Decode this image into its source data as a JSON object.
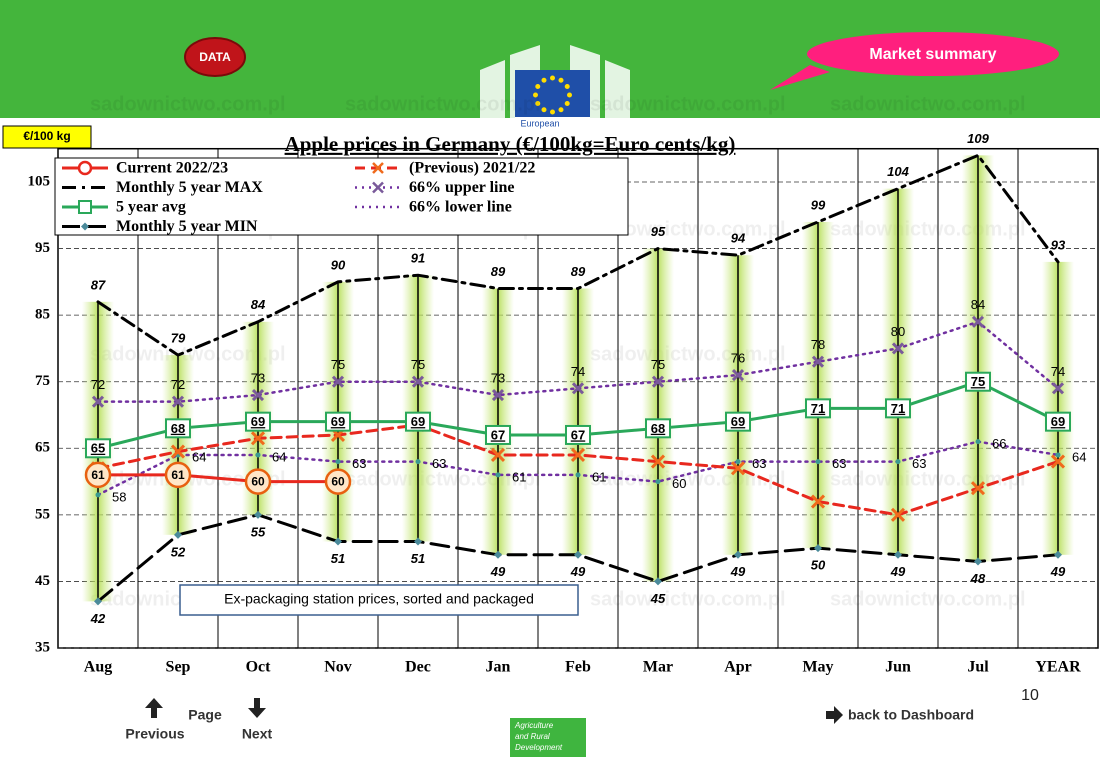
{
  "header": {
    "data_button": "DATA",
    "market_summary": "Market summary",
    "logo_text": "European"
  },
  "watermark": "sadownictwo.com.pl",
  "chart_data": {
    "type": "line",
    "title": "Apple prices in Germany (€/100kg=Euro cents/kg)",
    "y_label": "€/100 kg",
    "annotation": "Ex-packaging station prices, sorted and packaged",
    "categories": [
      "Aug",
      "Sep",
      "Oct",
      "Nov",
      "Dec",
      "Jan",
      "Feb",
      "Mar",
      "Apr",
      "May",
      "Jun",
      "Jul",
      "YEAR"
    ],
    "series": [
      {
        "name": "Current 2022/23",
        "color": "#e8281e",
        "values": [
          61,
          61,
          60,
          60,
          null,
          null,
          null,
          null,
          null,
          null,
          null,
          null,
          null
        ]
      },
      {
        "name": "(Previous) 2021/22",
        "color": "#e8281e",
        "values": [
          62,
          64.5,
          66.5,
          67,
          68.5,
          64,
          64,
          63,
          62,
          57,
          55,
          59,
          63
        ]
      },
      {
        "name": "Monthly 5 year MAX",
        "color": "#000000",
        "values": [
          87,
          79,
          84,
          90,
          91,
          89,
          89,
          95,
          94,
          99,
          104,
          109,
          93
        ]
      },
      {
        "name": "66% upper line",
        "color": "#7030a0",
        "values": [
          72,
          72,
          73,
          75,
          75,
          73,
          74,
          75,
          76,
          78,
          80,
          84,
          74
        ]
      },
      {
        "name": "5 year avg",
        "color": "#2aa85a",
        "values": [
          65,
          68,
          69,
          69,
          69,
          67,
          67,
          68,
          69,
          71,
          71,
          75,
          69
        ]
      },
      {
        "name": "66% lower line",
        "color": "#7030a0",
        "values": [
          58,
          64,
          64,
          63,
          63,
          61,
          61,
          60,
          63,
          63,
          63,
          66,
          64
        ]
      },
      {
        "name": "Monthly 5 year MIN",
        "color": "#000000",
        "values": [
          42,
          52,
          55,
          51,
          51,
          49,
          49,
          45,
          49,
          50,
          49,
          48,
          49
        ]
      }
    ],
    "ylim": [
      35,
      110
    ],
    "yticks": [
      35,
      45,
      55,
      65,
      75,
      85,
      95,
      105
    ],
    "grid": true
  },
  "footer": {
    "page": "Page",
    "previous": "Previous",
    "next": "Next",
    "dashboard": "back to Dashboard",
    "page_number": 10,
    "dg_line1": "Agriculture",
    "dg_line2": "and Rural",
    "dg_line3": "Development"
  }
}
